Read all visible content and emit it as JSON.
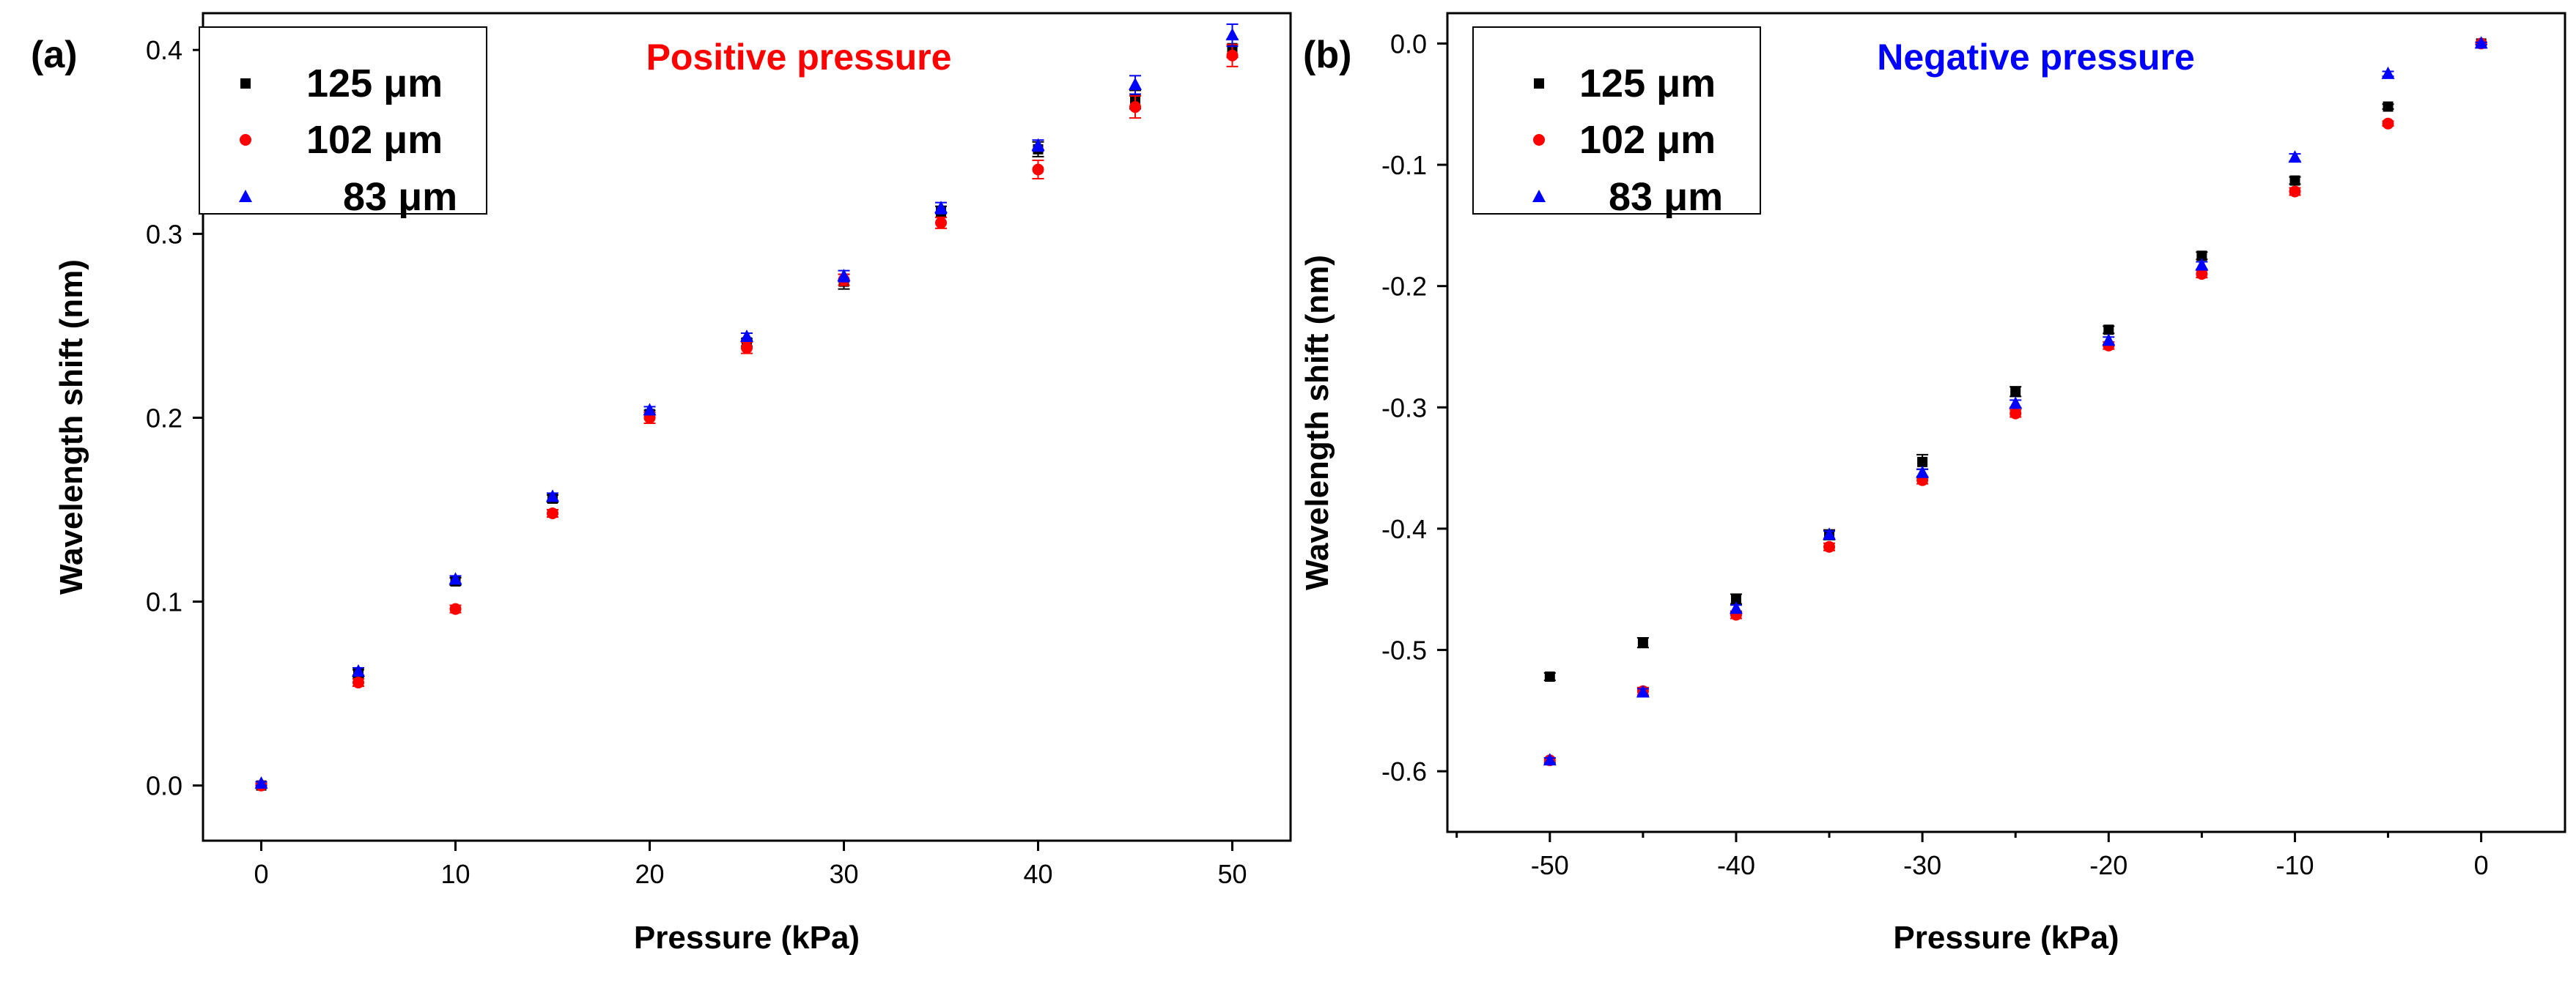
{
  "chart_data": [
    {
      "type": "scatter",
      "panel": "(a)",
      "title": "Positive pressure",
      "title_color": "#ff0000",
      "xlabel": "Pressure (kPa)",
      "ylabel": "Wavelength shift (nm)",
      "xlim": [
        -3,
        53
      ],
      "ylim": [
        -0.03,
        0.42
      ],
      "xticks": [
        0,
        10,
        20,
        30,
        40,
        50
      ],
      "xtick_labels": [
        "0",
        "10",
        "20",
        "30",
        "40",
        "50"
      ],
      "yticks": [
        0.0,
        0.1,
        0.2,
        0.3,
        0.4
      ],
      "ytick_labels": [
        "0.0",
        "0.1",
        "0.2",
        "0.3",
        "0.4"
      ],
      "legend_position": "top-left",
      "grid": false,
      "x": [
        0,
        5,
        10,
        15,
        20,
        25,
        30,
        35,
        40,
        45,
        50
      ],
      "series": [
        {
          "name": "125 μm",
          "legend_number": "125",
          "legend_unit": "μm",
          "color": "#000000",
          "marker": "square",
          "values": [
            0.0,
            0.061,
            0.111,
            0.156,
            0.202,
            0.241,
            0.274,
            0.312,
            0.346,
            0.373,
            0.401
          ],
          "errors": [
            0.001,
            0.002,
            0.002,
            0.002,
            0.002,
            0.002,
            0.004,
            0.003,
            0.004,
            0.005,
            0.005
          ]
        },
        {
          "name": "102 μm",
          "legend_number": "102",
          "legend_unit": "μm",
          "color": "#ff0000",
          "marker": "circle",
          "values": [
            0.0,
            0.056,
            0.096,
            0.148,
            0.2,
            0.238,
            0.275,
            0.306,
            0.335,
            0.369,
            0.397
          ],
          "errors": [
            0.001,
            0.002,
            0.002,
            0.002,
            0.003,
            0.003,
            0.003,
            0.003,
            0.005,
            0.006,
            0.006
          ]
        },
        {
          "name": "83 μm",
          "legend_number": "83",
          "legend_unit": "μm",
          "color": "#0000ff",
          "marker": "triangle",
          "values": [
            0.001,
            0.062,
            0.112,
            0.157,
            0.204,
            0.244,
            0.277,
            0.314,
            0.348,
            0.381,
            0.408
          ],
          "errors": [
            0.001,
            0.002,
            0.002,
            0.002,
            0.002,
            0.002,
            0.003,
            0.003,
            0.003,
            0.005,
            0.006
          ]
        }
      ]
    },
    {
      "type": "scatter",
      "panel": "(b)",
      "title": "Negative pressure",
      "title_color": "#0000ff",
      "xlabel": "Pressure (kPa)",
      "ylabel": "Wavelength shift (nm)",
      "xlim": [
        -55.5,
        4.5
      ],
      "ylim": [
        -0.65,
        0.025
      ],
      "xticks": [
        -50,
        -40,
        -30,
        -20,
        -10,
        0
      ],
      "xtick_labels": [
        "-50",
        "-40",
        "-30",
        "-20",
        "-10",
        "0"
      ],
      "xminorticks": [
        -55,
        -45,
        -35,
        -25,
        -15,
        -5
      ],
      "yticks": [
        0.0,
        -0.1,
        -0.2,
        -0.3,
        -0.4,
        -0.5,
        -0.6
      ],
      "ytick_labels": [
        "0.0",
        "-0.1",
        "-0.2",
        "-0.3",
        "-0.4",
        "-0.5",
        "-0.6"
      ],
      "legend_position": "top-left",
      "grid": false,
      "x": [
        -50,
        -45,
        -40,
        -35,
        -30,
        -25,
        -20,
        -15,
        -10,
        -5,
        0
      ],
      "series": [
        {
          "name": "125 μm",
          "legend_number": "125",
          "legend_unit": "μm",
          "color": "#000000",
          "marker": "square",
          "values": [
            -0.522,
            -0.494,
            -0.458,
            -0.405,
            -0.345,
            -0.287,
            -0.236,
            -0.175,
            -0.113,
            -0.052,
            0.0
          ],
          "errors": [
            0.003,
            0.004,
            0.004,
            0.004,
            0.006,
            0.004,
            0.003,
            0.003,
            0.003,
            0.002,
            0.001
          ]
        },
        {
          "name": "102 μm",
          "legend_number": "102",
          "legend_unit": "μm",
          "color": "#ff0000",
          "marker": "circle",
          "values": [
            -0.591,
            -0.534,
            -0.471,
            -0.415,
            -0.36,
            -0.305,
            -0.249,
            -0.19,
            -0.122,
            -0.066,
            0.0
          ],
          "errors": [
            0.002,
            0.003,
            0.003,
            0.003,
            0.003,
            0.003,
            0.003,
            0.003,
            0.003,
            0.002,
            0.001
          ]
        },
        {
          "name": "83 μm",
          "legend_number": "83",
          "legend_unit": "μm",
          "color": "#0000ff",
          "marker": "triangle",
          "values": [
            -0.591,
            -0.535,
            -0.466,
            -0.405,
            -0.354,
            -0.297,
            -0.245,
            -0.183,
            -0.094,
            -0.025,
            0.0
          ],
          "errors": [
            0.002,
            0.003,
            0.003,
            0.003,
            0.003,
            0.003,
            0.003,
            0.003,
            0.003,
            0.002,
            0.001
          ]
        }
      ]
    }
  ]
}
